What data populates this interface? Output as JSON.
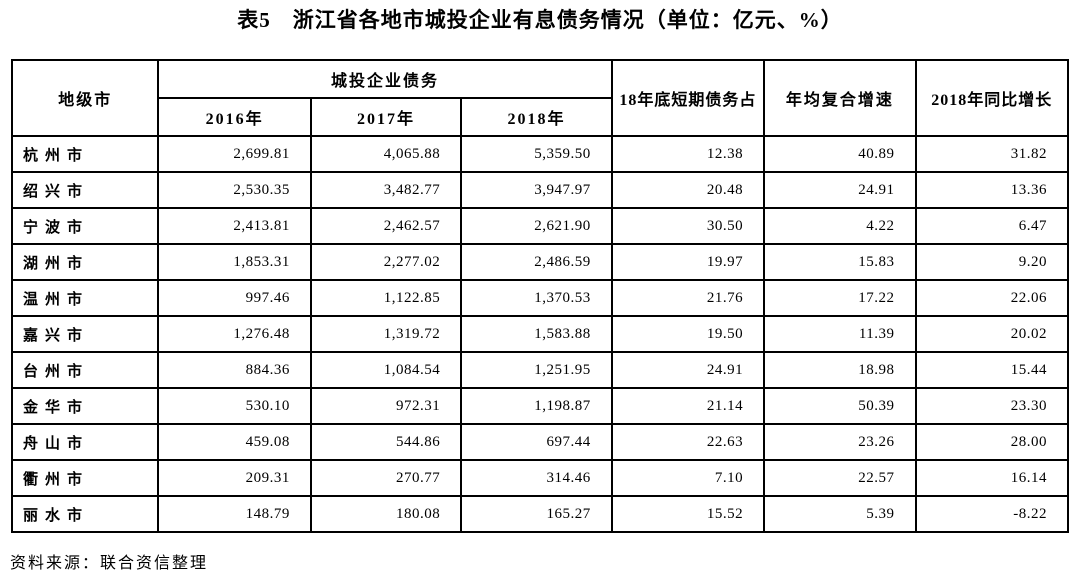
{
  "page": {
    "title": "表5　浙江省各地市城投企业有息债务情况（单位：亿元、%）",
    "source_note": "资料来源：联合资信整理"
  },
  "table": {
    "header": {
      "city": "地级市",
      "debt_group": "城投企业债务",
      "year_2016": "2016年",
      "year_2017": "2017年",
      "year_2018": "2018年",
      "short_term_share": "18年底短期债务占",
      "cagr": "年均复合增速",
      "yoy_2018": "2018年同比增长"
    },
    "rows": [
      {
        "city": "杭州市",
        "y2016": "2,699.81",
        "y2017": "4,065.88",
        "y2018": "5,359.50",
        "short_term_share": "12.38",
        "cagr": "40.89",
        "yoy": "31.82"
      },
      {
        "city": "绍兴市",
        "y2016": "2,530.35",
        "y2017": "3,482.77",
        "y2018": "3,947.97",
        "short_term_share": "20.48",
        "cagr": "24.91",
        "yoy": "13.36"
      },
      {
        "city": "宁波市",
        "y2016": "2,413.81",
        "y2017": "2,462.57",
        "y2018": "2,621.90",
        "short_term_share": "30.50",
        "cagr": "4.22",
        "yoy": "6.47"
      },
      {
        "city": "湖州市",
        "y2016": "1,853.31",
        "y2017": "2,277.02",
        "y2018": "2,486.59",
        "short_term_share": "19.97",
        "cagr": "15.83",
        "yoy": "9.20"
      },
      {
        "city": "温州市",
        "y2016": "997.46",
        "y2017": "1,122.85",
        "y2018": "1,370.53",
        "short_term_share": "21.76",
        "cagr": "17.22",
        "yoy": "22.06"
      },
      {
        "city": "嘉兴市",
        "y2016": "1,276.48",
        "y2017": "1,319.72",
        "y2018": "1,583.88",
        "short_term_share": "19.50",
        "cagr": "11.39",
        "yoy": "20.02"
      },
      {
        "city": "台州市",
        "y2016": "884.36",
        "y2017": "1,084.54",
        "y2018": "1,251.95",
        "short_term_share": "24.91",
        "cagr": "18.98",
        "yoy": "15.44"
      },
      {
        "city": "金华市",
        "y2016": "530.10",
        "y2017": "972.31",
        "y2018": "1,198.87",
        "short_term_share": "21.14",
        "cagr": "50.39",
        "yoy": "23.30"
      },
      {
        "city": "舟山市",
        "y2016": "459.08",
        "y2017": "544.86",
        "y2018": "697.44",
        "short_term_share": "22.63",
        "cagr": "23.26",
        "yoy": "28.00"
      },
      {
        "city": "衢州市",
        "y2016": "209.31",
        "y2017": "270.77",
        "y2018": "314.46",
        "short_term_share": "7.10",
        "cagr": "22.57",
        "yoy": "16.14"
      },
      {
        "city": "丽水市",
        "y2016": "148.79",
        "y2017": "180.08",
        "y2018": "165.27",
        "short_term_share": "15.52",
        "cagr": "5.39",
        "yoy": "-8.22"
      }
    ]
  }
}
